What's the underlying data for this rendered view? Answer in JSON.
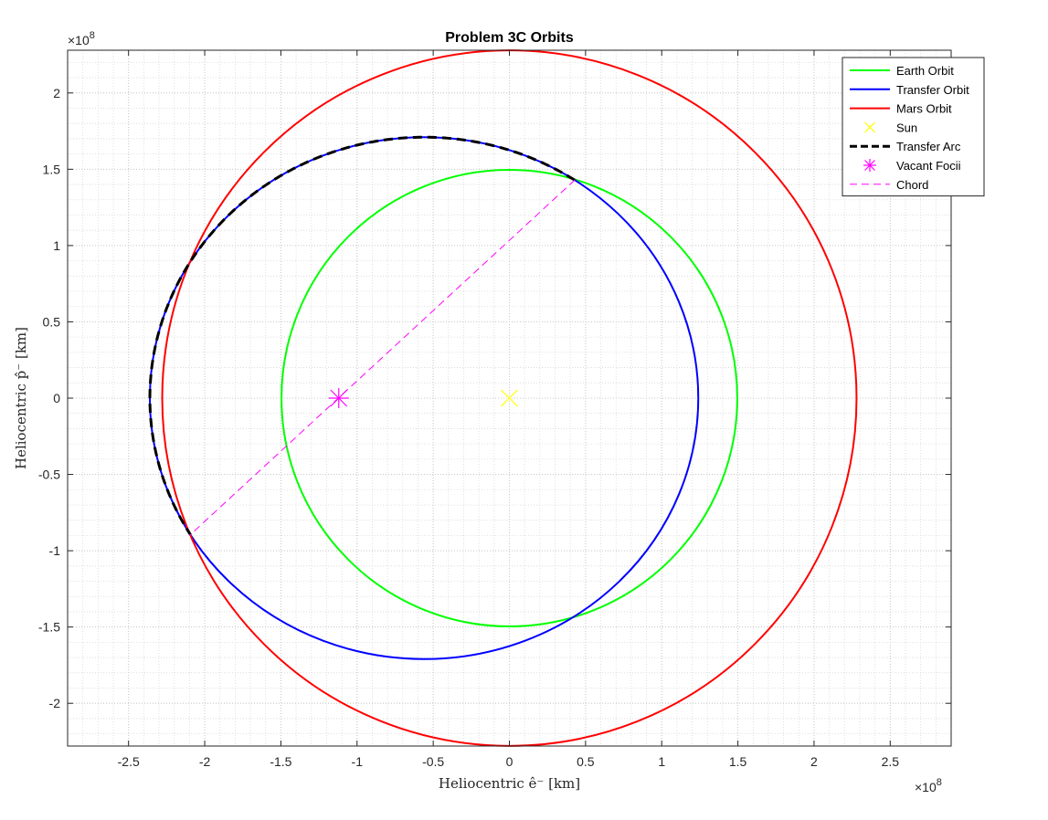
{
  "chart_data": {
    "type": "line",
    "title": "Problem 3C Orbits",
    "xlabel": "Heliocentric ê⁻ [km]",
    "ylabel": "Heliocentric p̂⁻ [km]",
    "x_exponent": "×10",
    "x_exponent_power": "8",
    "y_exponent": "×10",
    "y_exponent_power": "8",
    "xlim": [
      -2.9,
      2.9
    ],
    "ylim": [
      -2.28,
      2.28
    ],
    "axis_scale": "1e8 km",
    "xticks": [
      -2.5,
      -2,
      -1.5,
      -1,
      -0.5,
      0,
      0.5,
      1,
      1.5,
      2,
      2.5
    ],
    "xtick_labels": [
      "-2.5",
      "-2",
      "-1.5",
      "-1",
      "-0.5",
      "0",
      "0.5",
      "1",
      "1.5",
      "2",
      "2.5"
    ],
    "yticks": [
      -2,
      -1.5,
      -1,
      -0.5,
      0,
      0.5,
      1,
      1.5,
      2
    ],
    "ytick_labels": [
      "-2",
      "-1.5",
      "-1",
      "-0.5",
      "0",
      "0.5",
      "1",
      "1.5",
      "2"
    ],
    "grid": true,
    "minor_grid": true,
    "legend_position": "top-right",
    "series": [
      {
        "name": "Earth Orbit",
        "kind": "ellipse",
        "color": "#00ff00",
        "center": [
          0,
          0
        ],
        "semi_axes": [
          1.496,
          1.496
        ],
        "style": "solid"
      },
      {
        "name": "Transfer Orbit",
        "kind": "ellipse",
        "color": "#0000ff",
        "center": [
          -0.56,
          0
        ],
        "semi_axes": [
          1.8,
          1.71
        ],
        "style": "solid"
      },
      {
        "name": "Mars Orbit",
        "kind": "ellipse",
        "color": "#ff0000",
        "center": [
          0,
          0
        ],
        "semi_axes": [
          2.279,
          2.279
        ],
        "style": "solid"
      },
      {
        "name": "Sun",
        "kind": "marker",
        "marker": "x",
        "color": "#ffff00",
        "x": 0,
        "y": 0
      },
      {
        "name": "Transfer Arc",
        "kind": "arc",
        "color": "#000000",
        "center": [
          -0.56,
          0
        ],
        "semi_axes": [
          1.8,
          1.71
        ],
        "from_point": [
          0.43,
          1.43
        ],
        "to_point": [
          -2.1,
          -0.9
        ],
        "through_point": [
          -2.36,
          0
        ],
        "style": "dashed"
      },
      {
        "name": "Vacant Focii",
        "kind": "marker",
        "marker": "asterisk",
        "color": "#ff00ff",
        "x": -1.12,
        "y": 0
      },
      {
        "name": "Chord",
        "kind": "segment",
        "color": "#ff00ff",
        "x": [
          0.43,
          -2.1
        ],
        "y": [
          1.43,
          -0.9
        ],
        "style": "dashed"
      }
    ]
  }
}
